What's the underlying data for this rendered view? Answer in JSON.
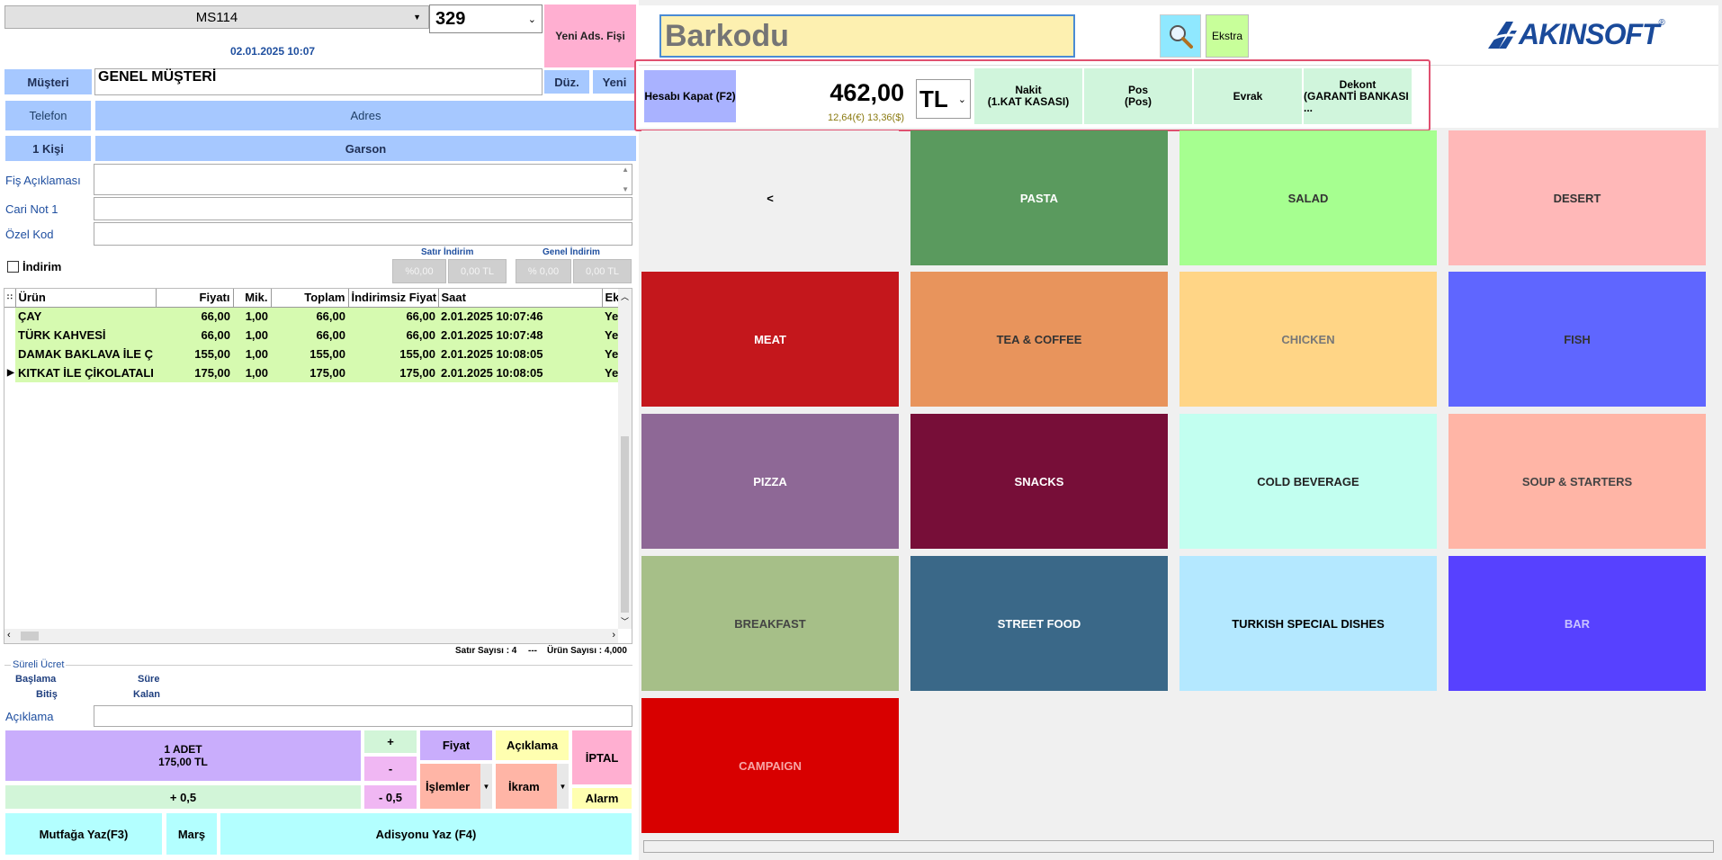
{
  "header": {
    "table_select": "MS114",
    "order_number": "329",
    "datetime": "02.01.2025 10:07",
    "new_receipt_label": "Yeni Ads. Fişi"
  },
  "customer": {
    "label": "Müşteri",
    "value": "GENEL MÜŞTERİ",
    "edit_label": "Düz.",
    "new_label": "Yeni",
    "phone_label": "Telefon",
    "address_label": "Adres",
    "people_label": "1 Kişi",
    "waiter_label": "Garson"
  },
  "notes": {
    "receipt_note_label": "Fiş Açıklaması",
    "cari_note_label": "Cari Not 1",
    "special_code_label": "Özel Kod"
  },
  "discount": {
    "checkbox_label": "İndirim",
    "line_label": "Satır İndirim",
    "general_label": "Genel İndirim",
    "line_pct": "%0,00",
    "line_tl": "0,00 TL",
    "general_pct": "% 0,00",
    "general_tl": "0,00 TL"
  },
  "order_table": {
    "headers": [
      "Ürün",
      "Fiyatı",
      "Mik.",
      "Toplam",
      "İndirimsiz Fiyat",
      "Saat",
      "Ek"
    ],
    "rows": [
      {
        "product": "ÇAY",
        "price": "66,00",
        "qty": "1,00",
        "total": "66,00",
        "undiscounted": "66,00",
        "time": "2.01.2025 10:07:46",
        "ek": "Ye"
      },
      {
        "product": "TÜRK KAHVESİ",
        "price": "66,00",
        "qty": "1,00",
        "total": "66,00",
        "undiscounted": "66,00",
        "time": "2.01.2025 10:07:48",
        "ek": "Ye"
      },
      {
        "product": "DAMAK BAKLAVA İLE Ç",
        "price": "155,00",
        "qty": "1,00",
        "total": "155,00",
        "undiscounted": "155,00",
        "time": "2.01.2025 10:08:05",
        "ek": "Ye"
      },
      {
        "product": "KITKAT İLE ÇİKOLATALI",
        "price": "175,00",
        "qty": "1,00",
        "total": "175,00",
        "undiscounted": "175,00",
        "time": "2.01.2025 10:08:05",
        "ek": "Ye"
      }
    ]
  },
  "summary": {
    "row_count": "Satır Sayısı : 4",
    "separator": "---",
    "product_count": "Ürün Sayısı : 4,000"
  },
  "timed_fee": {
    "title": "Süreli Ücret",
    "start_label": "Başlama",
    "end_label": "Bitiş",
    "duration_label": "Süre",
    "remaining_label": "Kalan"
  },
  "description_label": "Açıklama",
  "controls": {
    "qty_line1": "1 ADET",
    "qty_line2": "175,00 TL",
    "plus": "+",
    "minus": "-",
    "plus_half": "+ 0,5",
    "minus_half": "- 0,5",
    "price": "Fiyat",
    "note": "Açıklama",
    "cancel": "İPTAL",
    "operations": "İşlemler",
    "treat": "İkram",
    "alarm": "Alarm",
    "kitchen": "Mutfağa Yaz(F3)",
    "march": "Marş",
    "receipt": "Adisyonu Yaz (F4)"
  },
  "topbar": {
    "barcode_placeholder": "Barkodu",
    "extra_label": "Ekstra",
    "brand": "AKINSOFT",
    "brand_mark": "®"
  },
  "payment": {
    "close_account": "Hesabı Kapat (F2)",
    "total": "462,00",
    "foreign": "12,64(€) 13,36($)",
    "currency": "TL",
    "methods": [
      {
        "title": "Nakit",
        "sub": "(1.KAT KASASI)"
      },
      {
        "title": "Pos",
        "sub": "(Pos)"
      },
      {
        "title": "Evrak",
        "sub": ""
      },
      {
        "title": "Dekont",
        "sub": "(GARANTİ BANKASI ..."
      }
    ]
  },
  "categories": [
    {
      "label": "<",
      "bg": "#f0f0f0",
      "fg": "#000000"
    },
    {
      "label": "PASTA",
      "bg": "#5a9a5e",
      "fg": "#ffffff"
    },
    {
      "label": "SALAD",
      "bg": "#a6ff90",
      "fg": "#333333"
    },
    {
      "label": "DESERT",
      "bg": "#ffb8b8",
      "fg": "#333333"
    },
    {
      "label": "MEAT",
      "bg": "#c4171c",
      "fg": "#ffffff"
    },
    {
      "label": "TEA & COFFEE",
      "bg": "#e8945c",
      "fg": "#333333"
    },
    {
      "label": "CHICKEN",
      "bg": "#ffd586",
      "fg": "#777777"
    },
    {
      "label": "FISH",
      "bg": "#5f66ff",
      "fg": "#333333"
    },
    {
      "label": "PIZZA",
      "bg": "#8e6896",
      "fg": "#ffffff"
    },
    {
      "label": "SNACKS",
      "bg": "#770e38",
      "fg": "#ffffff"
    },
    {
      "label": "COLD BEVERAGE",
      "bg": "#c2fff0",
      "fg": "#222222"
    },
    {
      "label": "SOUP & STARTERS",
      "bg": "#ffb5a6",
      "fg": "#444444"
    },
    {
      "label": "BREAKFAST",
      "bg": "#a6bf88",
      "fg": "#444444"
    },
    {
      "label": "STREET FOOD",
      "bg": "#3a6888",
      "fg": "#ffffff"
    },
    {
      "label": "TURKISH SPECIAL DISHES",
      "bg": "#b4e8ff",
      "fg": "#000000"
    },
    {
      "label": "BAR",
      "bg": "#5741ff",
      "fg": "#c9c4ff"
    },
    {
      "label": "CAMPAIGN",
      "bg": "#d80000",
      "fg": "#f7a6a6"
    }
  ]
}
